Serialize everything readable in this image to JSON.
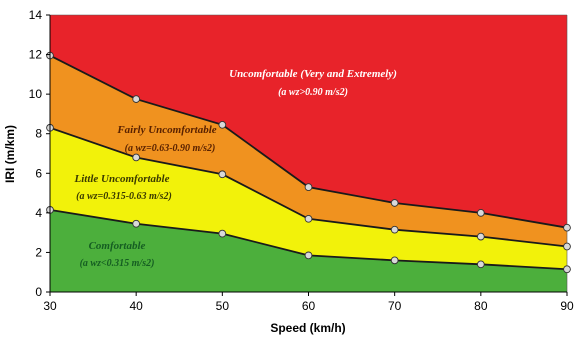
{
  "chart_data": {
    "type": "area",
    "xlabel": "Speed (km/h)",
    "ylabel": "IRI (m/km)",
    "x": [
      30,
      40,
      50,
      60,
      70,
      80,
      90
    ],
    "xlim": [
      30,
      90
    ],
    "ylim": [
      0,
      14
    ],
    "xticks": [
      "30",
      "40",
      "50",
      "60",
      "70",
      "80",
      "90"
    ],
    "yticks": [
      "0",
      "2",
      "4",
      "6",
      "8",
      "10",
      "12",
      "14"
    ],
    "grid": false,
    "colors": {
      "comfortable": "#4caf3c",
      "little": "#f2f20a",
      "fairly": "#f0921f",
      "uncomfortable": "#e8232a",
      "comfortable_text": "#1c7a2a",
      "little_text": "#4a4a00",
      "fairly_text": "#6a2a00",
      "uncomfortable_text": "#ffffff"
    },
    "boundaries": [
      {
        "values": [
          4.15,
          3.45,
          2.95,
          1.85,
          1.6,
          1.4,
          1.15
        ]
      },
      {
        "values": [
          8.3,
          6.8,
          5.95,
          3.7,
          3.15,
          2.8,
          2.3
        ]
      },
      {
        "values": [
          11.95,
          9.75,
          8.45,
          5.3,
          4.5,
          4.0,
          3.25
        ]
      }
    ],
    "zones": [
      {
        "name": "Comfortable",
        "condition": "(a wz<0.315 m/s2)"
      },
      {
        "name": "Little Uncomfortable",
        "condition": "(a wz=0.315-0.63 m/s2)"
      },
      {
        "name": "Fairly Uncomfortable",
        "condition": "(a wz=0.63-0.90 m/s2)"
      },
      {
        "name": "Uncomfortable (Very and Extremely)",
        "condition": "(a wz>0.90 m/s2)"
      }
    ]
  }
}
